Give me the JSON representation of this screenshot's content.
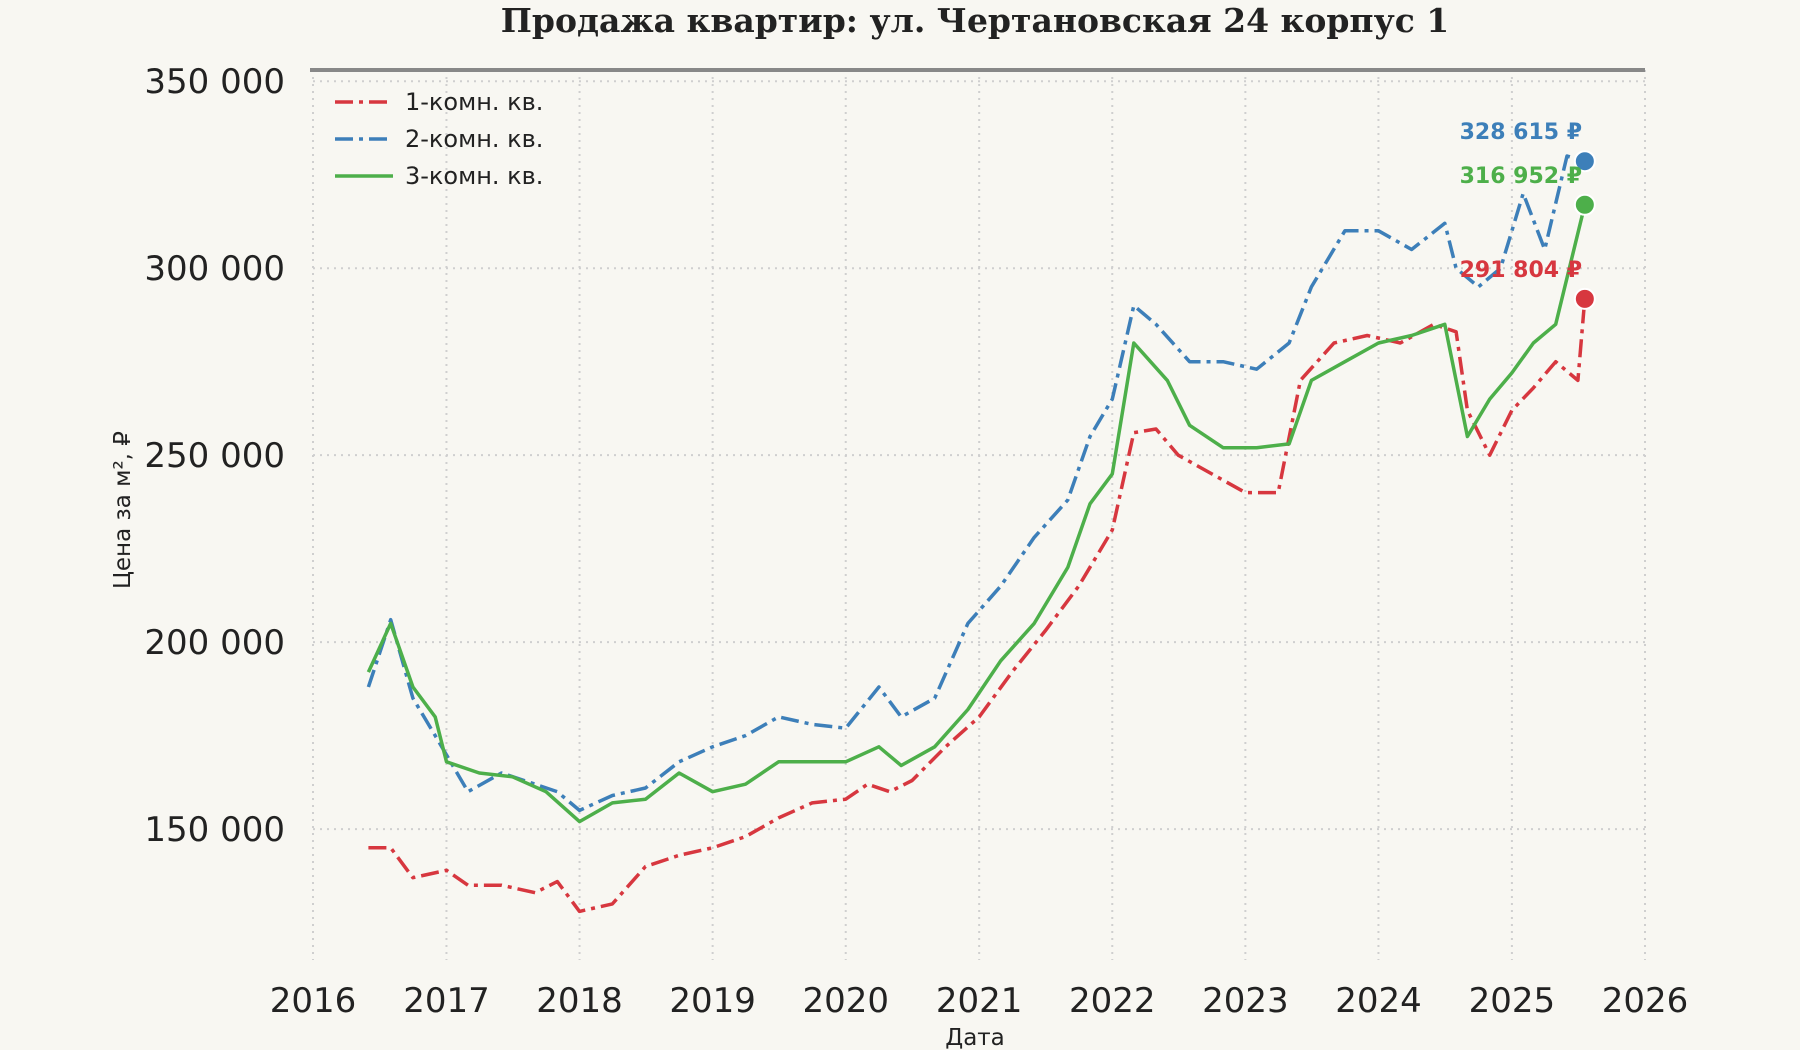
{
  "chart_data": {
    "type": "line",
    "title": "Продажа квартир: ул. Чертановская 24 корпус 1",
    "xlabel": "Дата",
    "ylabel": "Цена за м², ₽",
    "xlim": [
      "2016-01-01",
      "2026-01-01"
    ],
    "ylim": [
      115000,
      353000
    ],
    "x_ticks": [
      "2016",
      "2017",
      "2018",
      "2019",
      "2020",
      "2021",
      "2022",
      "2023",
      "2024",
      "2025",
      "2026"
    ],
    "y_ticks": [
      150000,
      200000,
      250000,
      300000,
      350000
    ],
    "y_tick_labels": [
      "150 000",
      "200 000",
      "250 000",
      "300 000",
      "350 000"
    ],
    "grid": true,
    "legend_position": "top-left",
    "series": [
      {
        "name": "1-комн. кв.",
        "color": "#d7373f",
        "style": "dash-dot",
        "points": [
          [
            "2016-06-01",
            145000
          ],
          [
            "2016-08-01",
            145000
          ],
          [
            "2016-10-01",
            137000
          ],
          [
            "2017-01-01",
            139000
          ],
          [
            "2017-03-01",
            135000
          ],
          [
            "2017-06-01",
            135000
          ],
          [
            "2017-09-01",
            133000
          ],
          [
            "2017-11-01",
            136000
          ],
          [
            "2018-01-01",
            128000
          ],
          [
            "2018-04-01",
            130000
          ],
          [
            "2018-07-01",
            140000
          ],
          [
            "2018-10-01",
            143000
          ],
          [
            "2019-01-01",
            145000
          ],
          [
            "2019-04-01",
            148000
          ],
          [
            "2019-07-01",
            153000
          ],
          [
            "2019-10-01",
            157000
          ],
          [
            "2020-01-01",
            158000
          ],
          [
            "2020-03-01",
            162000
          ],
          [
            "2020-05-01",
            160000
          ],
          [
            "2020-07-01",
            163000
          ],
          [
            "2020-10-01",
            172000
          ],
          [
            "2021-01-01",
            180000
          ],
          [
            "2021-04-01",
            192000
          ],
          [
            "2021-07-01",
            203000
          ],
          [
            "2021-10-01",
            215000
          ],
          [
            "2022-01-01",
            230000
          ],
          [
            "2022-03-01",
            256000
          ],
          [
            "2022-05-01",
            257000
          ],
          [
            "2022-07-01",
            250000
          ],
          [
            "2022-10-01",
            245000
          ],
          [
            "2023-01-01",
            240000
          ],
          [
            "2023-04-01",
            240000
          ],
          [
            "2023-06-01",
            270000
          ],
          [
            "2023-09-01",
            280000
          ],
          [
            "2023-12-01",
            282000
          ],
          [
            "2024-03-01",
            280000
          ],
          [
            "2024-06-01",
            285000
          ],
          [
            "2024-08-01",
            283000
          ],
          [
            "2024-09-01",
            262000
          ],
          [
            "2024-11-01",
            250000
          ],
          [
            "2025-01-01",
            262000
          ],
          [
            "2025-03-01",
            268000
          ],
          [
            "2025-05-01",
            275000
          ],
          [
            "2025-07-01",
            270000
          ],
          [
            "2025-07-20",
            291804
          ]
        ]
      },
      {
        "name": "2-комн. кв.",
        "color": "#3d7fb9",
        "style": "dash-dot",
        "points": [
          [
            "2016-06-01",
            188000
          ],
          [
            "2016-08-01",
            206000
          ],
          [
            "2016-10-01",
            185000
          ],
          [
            "2016-12-01",
            175000
          ],
          [
            "2017-03-01",
            160000
          ],
          [
            "2017-06-01",
            165000
          ],
          [
            "2017-09-01",
            162000
          ],
          [
            "2017-11-01",
            160000
          ],
          [
            "2018-01-01",
            155000
          ],
          [
            "2018-04-01",
            159000
          ],
          [
            "2018-07-01",
            161000
          ],
          [
            "2018-10-01",
            168000
          ],
          [
            "2019-01-01",
            172000
          ],
          [
            "2019-04-01",
            175000
          ],
          [
            "2019-07-01",
            180000
          ],
          [
            "2019-10-01",
            178000
          ],
          [
            "2020-01-01",
            177000
          ],
          [
            "2020-04-01",
            188000
          ],
          [
            "2020-06-01",
            180000
          ],
          [
            "2020-09-01",
            185000
          ],
          [
            "2020-12-01",
            205000
          ],
          [
            "2021-03-01",
            215000
          ],
          [
            "2021-06-01",
            228000
          ],
          [
            "2021-09-01",
            238000
          ],
          [
            "2021-11-01",
            255000
          ],
          [
            "2022-01-01",
            265000
          ],
          [
            "2022-03-01",
            290000
          ],
          [
            "2022-05-01",
            285000
          ],
          [
            "2022-08-01",
            275000
          ],
          [
            "2022-11-01",
            275000
          ],
          [
            "2023-02-01",
            273000
          ],
          [
            "2023-05-01",
            280000
          ],
          [
            "2023-07-01",
            295000
          ],
          [
            "2023-10-01",
            310000
          ],
          [
            "2024-01-01",
            310000
          ],
          [
            "2024-04-01",
            305000
          ],
          [
            "2024-07-01",
            312000
          ],
          [
            "2024-08-01",
            300000
          ],
          [
            "2024-10-01",
            295000
          ],
          [
            "2024-12-01",
            300000
          ],
          [
            "2025-02-01",
            320000
          ],
          [
            "2025-04-01",
            305000
          ],
          [
            "2025-06-01",
            330000
          ],
          [
            "2025-07-20",
            328615
          ]
        ]
      },
      {
        "name": "3-комн. кв.",
        "color": "#4daf4a",
        "style": "solid",
        "points": [
          [
            "2016-06-01",
            192000
          ],
          [
            "2016-08-01",
            205000
          ],
          [
            "2016-10-01",
            188000
          ],
          [
            "2016-12-01",
            180000
          ],
          [
            "2017-01-01",
            168000
          ],
          [
            "2017-04-01",
            165000
          ],
          [
            "2017-07-01",
            164000
          ],
          [
            "2017-10-01",
            160000
          ],
          [
            "2018-01-01",
            152000
          ],
          [
            "2018-04-01",
            157000
          ],
          [
            "2018-07-01",
            158000
          ],
          [
            "2018-10-01",
            165000
          ],
          [
            "2019-01-01",
            160000
          ],
          [
            "2019-04-01",
            162000
          ],
          [
            "2019-07-01",
            168000
          ],
          [
            "2019-10-01",
            168000
          ],
          [
            "2020-01-01",
            168000
          ],
          [
            "2020-04-01",
            172000
          ],
          [
            "2020-06-01",
            167000
          ],
          [
            "2020-09-01",
            172000
          ],
          [
            "2020-12-01",
            182000
          ],
          [
            "2021-03-01",
            195000
          ],
          [
            "2021-06-01",
            205000
          ],
          [
            "2021-09-01",
            220000
          ],
          [
            "2021-11-01",
            237000
          ],
          [
            "2022-01-01",
            245000
          ],
          [
            "2022-03-01",
            280000
          ],
          [
            "2022-06-01",
            270000
          ],
          [
            "2022-08-01",
            258000
          ],
          [
            "2022-11-01",
            252000
          ],
          [
            "2023-02-01",
            252000
          ],
          [
            "2023-05-01",
            253000
          ],
          [
            "2023-07-01",
            270000
          ],
          [
            "2023-10-01",
            275000
          ],
          [
            "2024-01-01",
            280000
          ],
          [
            "2024-04-01",
            282000
          ],
          [
            "2024-07-01",
            285000
          ],
          [
            "2024-08-01",
            270000
          ],
          [
            "2024-09-01",
            255000
          ],
          [
            "2024-11-01",
            265000
          ],
          [
            "2025-01-01",
            272000
          ],
          [
            "2025-03-01",
            280000
          ],
          [
            "2025-05-01",
            285000
          ],
          [
            "2025-07-20",
            316952
          ]
        ]
      }
    ],
    "end_markers": [
      {
        "series": "2-комн. кв.",
        "date": "2025-07-20",
        "value": 328615,
        "label": "328 615 ₽",
        "color": "#3d7fb9"
      },
      {
        "series": "3-комн. кв.",
        "date": "2025-07-20",
        "value": 316952,
        "label": "316 952 ₽",
        "color": "#4daf4a"
      },
      {
        "series": "1-комн. кв.",
        "date": "2025-07-20",
        "value": 291804,
        "label": "291 804 ₽",
        "color": "#d7373f"
      }
    ]
  }
}
